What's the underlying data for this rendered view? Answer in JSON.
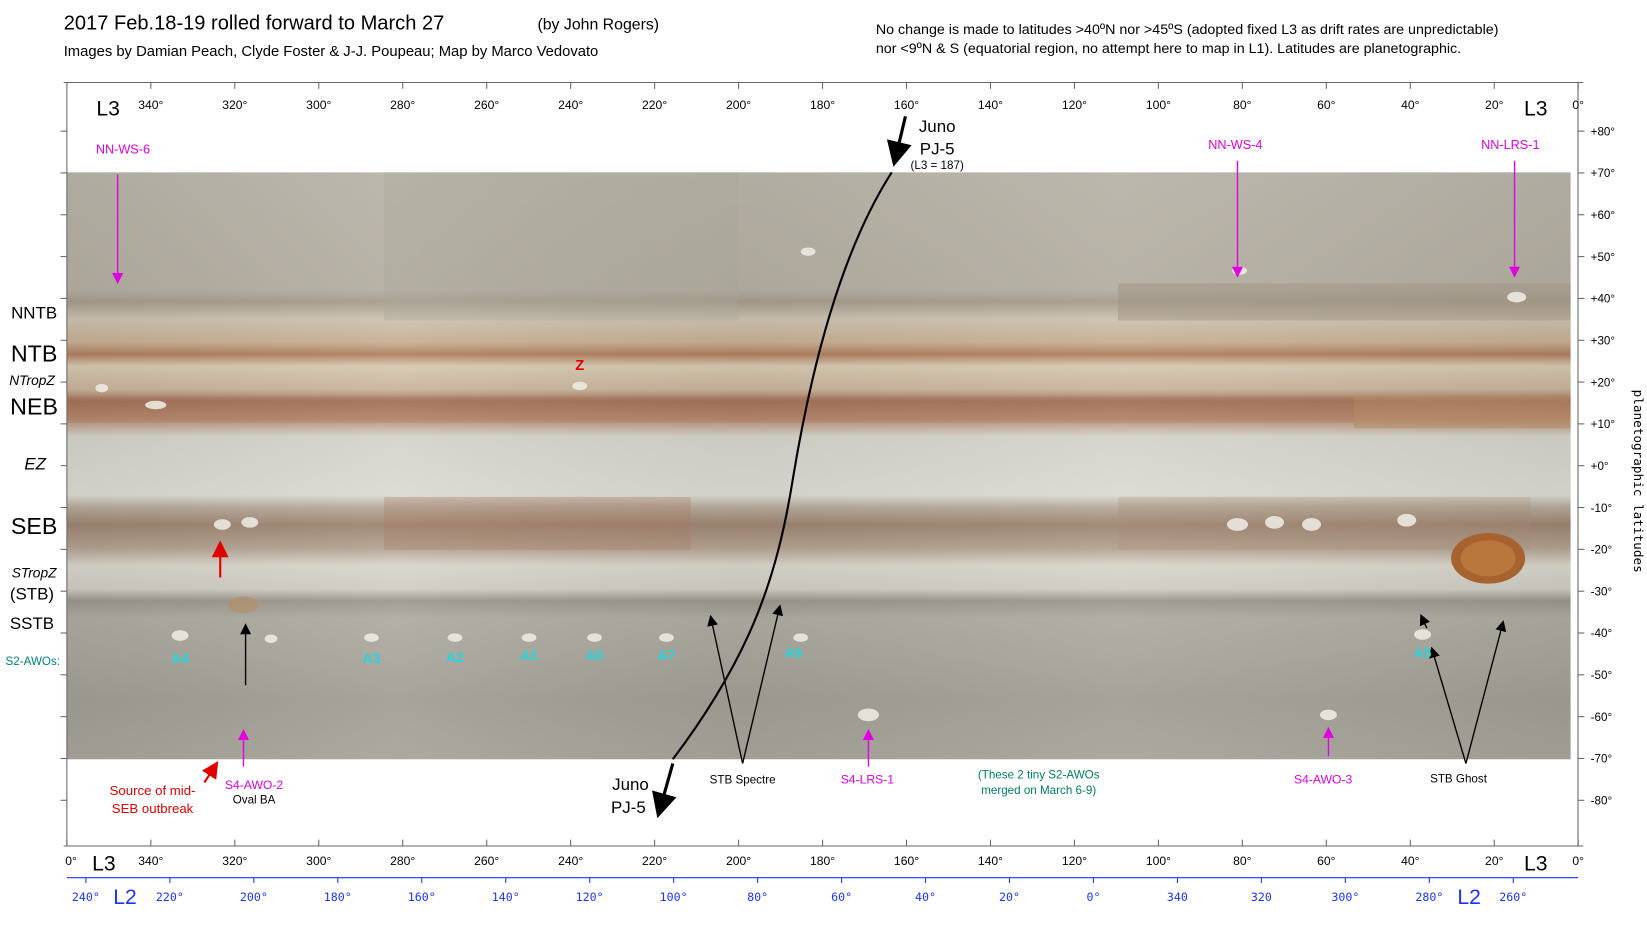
{
  "header": {
    "title": "2017 Feb.18-19 rolled forward to March 27",
    "author": "(by John Rogers)",
    "credits": "Images by Damian Peach, Clyde Foster & J-J. Poupeau; Map by Marco Vedovato",
    "note_lines": [
      "No change is made to latitudes >40ºN nor >45ºS (adopted fixed L3 as drift rates are unpredictable)",
      "nor <9ºN & S (equatorial region, no attempt here to map in L1).   Latitudes are planetographic."
    ]
  },
  "axes": {
    "l3_label": "L3",
    "l3_top_ticks": [
      "340°",
      "320°",
      "300°",
      "280°",
      "260°",
      "240°",
      "220°",
      "200°",
      "180°",
      "160°",
      "140°",
      "120°",
      "100°",
      "80°",
      "60°",
      "40°",
      "20°",
      "0°"
    ],
    "l3_bottom_ticks": [
      "0°",
      "340°",
      "320°",
      "300°",
      "280°",
      "260°",
      "240°",
      "220°",
      "200°",
      "180°",
      "160°",
      "140°",
      "120°",
      "100°",
      "80°",
      "60°",
      "40°",
      "20°",
      "0°"
    ],
    "l2_label": "L2",
    "l2_ticks": [
      "240°",
      "220°",
      "200°",
      "180°",
      "160°",
      "140°",
      "120°",
      "100°",
      "80°",
      "60°",
      "40°",
      "20°",
      "0°",
      "340",
      "320",
      "300°",
      "280°",
      "260°"
    ],
    "lat_ticks": [
      "+80°",
      "+70°",
      "+60°",
      "+50°",
      "+40°",
      "+30°",
      "+20°",
      "+10°",
      "+0°",
      "-10°",
      "-20°",
      "-30°",
      "-40°",
      "-50°",
      "-60°",
      "-70°",
      "-80°"
    ],
    "lat_title": "planetographic latitudes"
  },
  "belts": [
    "NNTB",
    "NTB",
    "NTropZ",
    "NEB",
    "EZ",
    "SEB",
    "STropZ",
    "(STB)",
    "SSTB",
    "S2-AWOs:"
  ],
  "annotations": {
    "north_spots": [
      "NN-WS-6",
      "NN-WS-4",
      "NN-LRS-1"
    ],
    "z_mark": "Z",
    "awos": [
      "A4",
      "A3",
      "A2",
      "A1",
      "A0",
      "A7",
      "A6",
      "A5"
    ],
    "juno_top": [
      "Juno",
      "PJ-5",
      "(L3 = 187)"
    ],
    "juno_bottom": [
      "Juno",
      "PJ-5"
    ],
    "stb_spectre": "STB Spectre",
    "s4_lrs_1": "S4-LRS-1",
    "merged_note": [
      "(These 2 tiny S2-AWOs",
      "merged on March 6-9)"
    ],
    "s4_awo_3": "S4-AWO-3",
    "stb_ghost": "STB Ghost",
    "s4_awo_2": [
      "S4-AWO-2",
      "Oval BA"
    ],
    "seb_source": [
      "Source of mid-",
      "SEB outbreak"
    ]
  }
}
